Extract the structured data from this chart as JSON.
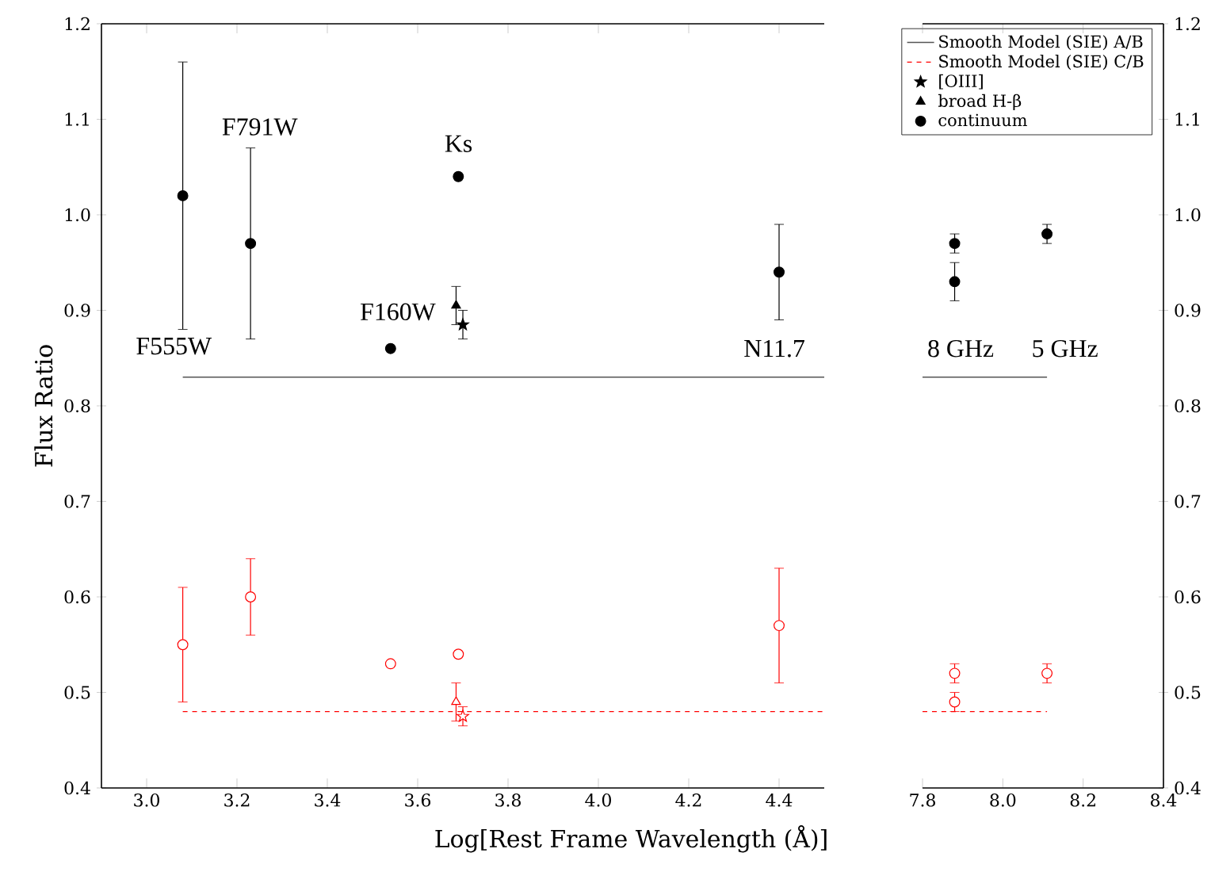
{
  "chart_data": [
    {
      "type": "scatter",
      "xlabel": "Log[Rest Frame Wavelength (Å)]",
      "ylabel": "Flux Ratio",
      "xlim": [
        2.9,
        4.5
      ],
      "ylim": [
        0.4,
        1.2
      ],
      "xticks": [
        {
          "value": 3.0,
          "label": "3.0"
        },
        {
          "value": 3.2,
          "label": "3.2"
        },
        {
          "value": 3.4,
          "label": "3.4"
        },
        {
          "value": 3.6,
          "label": "3.6"
        },
        {
          "value": 3.8,
          "label": "3.8"
        },
        {
          "value": 4.0,
          "label": "4.0"
        },
        {
          "value": 4.2,
          "label": "4.2"
        },
        {
          "value": 4.4,
          "label": "4.4"
        }
      ],
      "yticks": [
        {
          "value": 0.4,
          "label": "0.4"
        },
        {
          "value": 0.5,
          "label": "0.5"
        },
        {
          "value": 0.6,
          "label": "0.6"
        },
        {
          "value": 0.7,
          "label": "0.7"
        },
        {
          "value": 0.8,
          "label": "0.8"
        },
        {
          "value": 0.9,
          "label": "0.9"
        },
        {
          "value": 1.0,
          "label": "1.0"
        },
        {
          "value": 1.1,
          "label": "1.1"
        },
        {
          "value": 1.2,
          "label": "1.2"
        }
      ],
      "legend": "top right",
      "series": [
        {
          "name": "Smooth Model (SIE) A/B",
          "type": "line",
          "color": "#555555",
          "x": [
            3.08,
            4.5
          ],
          "values": [
            0.83,
            0.83
          ]
        },
        {
          "name": "Smooth Model (SIE) C/B",
          "type": "line",
          "line_style": "dashed",
          "color": "#ff0000",
          "x": [
            3.08,
            4.5
          ],
          "values": [
            0.48,
            0.48
          ]
        },
        {
          "name": "[OIII]",
          "marker": "star",
          "color": "#000000",
          "x": [
            3.7
          ],
          "values": [
            0.885
          ],
          "errors": [
            0.015
          ]
        },
        {
          "name": "broad H-β",
          "marker": "triangle",
          "color": "#000000",
          "x": [
            3.685
          ],
          "values": [
            0.905
          ],
          "errors": [
            0.02
          ]
        },
        {
          "name": "continuum",
          "marker": "circle",
          "color": "#000000",
          "x": [
            3.08,
            3.23,
            3.54,
            3.69,
            4.4
          ],
          "values": [
            1.02,
            0.97,
            0.86,
            1.04,
            0.94
          ],
          "errors": [
            0.14,
            0.1,
            null,
            null,
            0.05
          ]
        },
        {
          "marker": "star",
          "color": "#ff0000",
          "x": [
            3.7
          ],
          "values": [
            0.475
          ],
          "errors": [
            0.01
          ]
        },
        {
          "marker": "triangle",
          "color": "#ff0000",
          "x": [
            3.685
          ],
          "values": [
            0.49
          ],
          "errors": [
            0.02
          ]
        },
        {
          "marker": "circle",
          "color": "#ff0000",
          "x": [
            3.08,
            3.23,
            3.54,
            3.69,
            4.4
          ],
          "values": [
            0.55,
            0.6,
            0.53,
            0.54,
            0.57
          ],
          "errors": [
            0.06,
            0.04,
            null,
            null,
            0.06
          ]
        }
      ],
      "annotations": [
        "F555W",
        "F791W",
        "F160W",
        "Ks",
        "N11.7"
      ]
    },
    {
      "type": "scatter",
      "xlim": [
        7.8,
        8.4
      ],
      "ylim": [
        0.4,
        1.2
      ],
      "xticks": [
        {
          "value": 7.8,
          "label": "7.8"
        },
        {
          "value": 8.0,
          "label": "8.0"
        },
        {
          "value": 8.2,
          "label": "8.2"
        },
        {
          "value": 8.4,
          "label": "8.4"
        }
      ],
      "yticks": [
        {
          "value": 0.4,
          "label": "0.4"
        },
        {
          "value": 0.5,
          "label": "0.5"
        },
        {
          "value": 0.6,
          "label": "0.6"
        },
        {
          "value": 0.7,
          "label": "0.7"
        },
        {
          "value": 0.8,
          "label": "0.8"
        },
        {
          "value": 0.9,
          "label": "0.9"
        },
        {
          "value": 1.0,
          "label": "1.0"
        },
        {
          "value": 1.1,
          "label": "1.1"
        },
        {
          "value": 1.2,
          "label": "1.2"
        }
      ],
      "series": [
        {
          "type": "line",
          "color": "#555555",
          "x": [
            7.8,
            8.11
          ],
          "values": [
            0.83,
            0.83
          ]
        },
        {
          "type": "line",
          "line_style": "dashed",
          "color": "#ff0000",
          "x": [
            7.8,
            8.11
          ],
          "values": [
            0.48,
            0.48
          ]
        },
        {
          "marker": "circle",
          "color": "#000000",
          "x": [
            7.88,
            7.88,
            8.11
          ],
          "values": [
            0.97,
            0.93,
            0.98
          ],
          "errors": [
            0.01,
            0.02,
            0.01
          ]
        },
        {
          "marker": "circle",
          "color": "#ff0000",
          "x": [
            7.88,
            7.88,
            8.11
          ],
          "values": [
            0.52,
            0.49,
            0.52
          ],
          "errors": [
            0.01,
            0.01,
            0.01
          ]
        }
      ],
      "annotations": [
        "8 GHz",
        "5 GHz"
      ]
    }
  ]
}
